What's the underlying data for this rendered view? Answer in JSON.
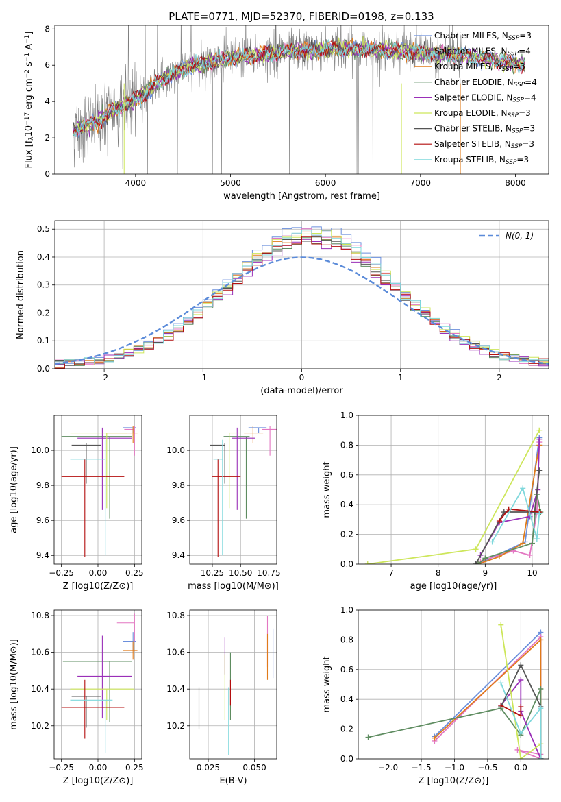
{
  "figure": {
    "title": "PLATE=0771, MJD=52370, FIBERID=0198, z=0.133"
  },
  "colors": {
    "Chabrier MILES": "#6b8fdc",
    "Salpeter MILES": "#e377c2",
    "Kroupa MILES": "#e07b1a",
    "Chabrier ELODIE": "#5e8c60",
    "Salpeter ELODIE": "#9a2fb8",
    "Kroupa ELODIE": "#cde65a",
    "Chabrier STELIB": "#555555",
    "Salpeter STELIB": "#b40f0f",
    "Kroupa STELIB": "#7fd8dc",
    "data": "#7f7f7f",
    "gaussian": "#5b8bd9",
    "grid": "#b0b0b0"
  },
  "chart_data": [
    {
      "id": "spectrum",
      "type": "line",
      "xlabel": "wavelength [Angstrom, rest frame]",
      "ylabel": "Flux [f_λ 10^-17 erg cm^-2 s^-1 A^-1]",
      "xticks": [
        4000,
        5000,
        6000,
        7000,
        8000
      ],
      "yticks": [
        0,
        2,
        4,
        6,
        8
      ],
      "xlim": [
        3150,
        8350
      ],
      "ylim": [
        0,
        8.2
      ],
      "grid": false,
      "legend": "right",
      "legend_entries": [
        {
          "label": "Chabrier MILES, N",
          "sub": "SSP",
          "suffix": "=3",
          "color": "#6b8fdc"
        },
        {
          "label": "Salpeter MILES, N",
          "sub": "SSP",
          "suffix": "=4",
          "color": "#e377c2"
        },
        {
          "label": "Kroupa MILES, N",
          "sub": "SSP",
          "suffix": "=3",
          "color": "#e07b1a"
        },
        {
          "label": "Chabrier ELODIE, N",
          "sub": "SSP",
          "suffix": "=4",
          "color": "#5e8c60"
        },
        {
          "label": "Salpeter ELODIE, N",
          "sub": "SSP",
          "suffix": "=4",
          "color": "#9a2fb8"
        },
        {
          "label": "Kroupa ELODIE, N",
          "sub": "SSP",
          "suffix": "=3",
          "color": "#cde65a"
        },
        {
          "label": "Chabrier STELIB, N",
          "sub": "SSP",
          "suffix": "=3",
          "color": "#555555"
        },
        {
          "label": "Salpeter STELIB, N",
          "sub": "SSP",
          "suffix": "=3",
          "color": "#b40f0f"
        },
        {
          "label": "Kroupa STELIB, N",
          "sub": "SSP",
          "suffix": "=3",
          "color": "#7fd8dc"
        }
      ],
      "data_range": [
        3340,
        7440
      ],
      "model_range": [
        3340,
        8100
      ],
      "continuum": [
        [
          3340,
          2.4
        ],
        [
          3600,
          2.9
        ],
        [
          3800,
          3.6
        ],
        [
          4000,
          4.1
        ],
        [
          4300,
          5.3
        ],
        [
          4600,
          6.0
        ],
        [
          5000,
          6.4
        ],
        [
          5500,
          6.7
        ],
        [
          6000,
          6.9
        ],
        [
          6500,
          6.9
        ],
        [
          7000,
          6.7
        ],
        [
          7500,
          6.5
        ],
        [
          8100,
          6.0
        ]
      ]
    },
    {
      "id": "residuals",
      "type": "step",
      "xlabel": "(data-model)/error",
      "ylabel": "Normed distribution",
      "xticks": [
        -2,
        -1,
        0,
        1,
        2
      ],
      "yticks": [
        0.0,
        0.1,
        0.2,
        0.3,
        0.4,
        0.5
      ],
      "xlim": [
        -2.5,
        2.5
      ],
      "ylim": [
        0,
        0.53
      ],
      "grid": true,
      "legend": "top-right",
      "legend_label": "N(0, 1)",
      "bins": 50,
      "mean": 0.1,
      "sigma": 0.85,
      "peak_values": [
        0.5,
        0.48,
        0.47,
        0.45,
        0.44,
        0.48,
        0.46,
        0.45,
        0.47
      ]
    },
    {
      "id": "age_vs_Z",
      "type": "errorbar",
      "xlabel": "Z [log10(Z/Z⊙)]",
      "ylabel": "age [log10(age/yr)]",
      "xticks": [
        -0.25,
        0.0,
        0.25
      ],
      "xtick_labels": [
        "−0.25",
        "0.00",
        "0.25"
      ],
      "yticks": [
        9.4,
        9.6,
        9.8,
        10.0
      ],
      "xlim": [
        -0.3,
        0.3
      ],
      "ylim": [
        9.35,
        10.2
      ],
      "grid": true,
      "points": [
        {
          "model": "Chabrier MILES",
          "x": 0.24,
          "xerr": [
            0.07,
            0.02
          ],
          "y": 10.13,
          "yerr": [
            0.03,
            0.0
          ]
        },
        {
          "model": "Salpeter MILES",
          "x": 0.25,
          "xerr": [
            0.07,
            0.0
          ],
          "y": 10.12,
          "yerr": [
            0.15,
            0.02
          ]
        },
        {
          "model": "Kroupa MILES",
          "x": 0.24,
          "xerr": [
            0.18,
            0.03
          ],
          "y": 10.1,
          "yerr": [
            0.06,
            0.04
          ]
        },
        {
          "model": "Chabrier ELODIE",
          "x": 0.08,
          "xerr": [
            0.33,
            0.15
          ],
          "y": 10.08,
          "yerr": [
            0.47,
            0.0
          ]
        },
        {
          "model": "Salpeter ELODIE",
          "x": 0.03,
          "xerr": [
            0.17,
            0.2
          ],
          "y": 10.07,
          "yerr": [
            0.41,
            0.06
          ]
        },
        {
          "model": "Kroupa ELODIE",
          "x": 0.06,
          "xerr": [
            0.25,
            0.14
          ],
          "y": 10.1,
          "yerr": [
            0.43,
            0.0
          ]
        },
        {
          "model": "Chabrier STELIB",
          "x": -0.08,
          "xerr": [
            0.1,
            0.1
          ],
          "y": 10.03,
          "yerr": [
            0.22,
            0.01
          ]
        },
        {
          "model": "Salpeter STELIB",
          "x": -0.09,
          "xerr": [
            0.16,
            0.27
          ],
          "y": 9.85,
          "yerr": [
            0.46,
            0.1
          ]
        },
        {
          "model": "Kroupa STELIB",
          "x": 0.05,
          "xerr": [
            0.24,
            0.0
          ],
          "y": 9.95,
          "yerr": [
            0.55,
            0.11
          ]
        }
      ]
    },
    {
      "id": "age_vs_mass",
      "type": "errorbar",
      "xlabel": "mass [log10(M/M⊙)]",
      "xticks": [
        10.25,
        10.5,
        10.75
      ],
      "xtick_labels": [
        "10.25",
        "10.50",
        "10.75"
      ],
      "yticks": [
        9.4,
        9.6,
        9.8,
        10.0
      ],
      "xlim": [
        10.05,
        10.82
      ],
      "ylim": [
        9.35,
        10.2
      ],
      "grid": true,
      "points": [
        {
          "model": "Chabrier MILES",
          "x": 10.66,
          "xerr": [
            0.09,
            0.07
          ],
          "y": 10.13,
          "yerr": [
            0.03,
            0.0
          ]
        },
        {
          "model": "Salpeter MILES",
          "x": 10.76,
          "xerr": [
            0.07,
            0.06
          ],
          "y": 10.12,
          "yerr": [
            0.15,
            0.02
          ]
        },
        {
          "model": "Kroupa MILES",
          "x": 10.61,
          "xerr": [
            0.08,
            0.09
          ],
          "y": 10.1,
          "yerr": [
            0.06,
            0.04
          ]
        },
        {
          "model": "Chabrier ELODIE",
          "x": 10.55,
          "xerr": [
            0.2,
            0.03
          ],
          "y": 10.08,
          "yerr": [
            0.47,
            0.0
          ]
        },
        {
          "model": "Salpeter ELODIE",
          "x": 10.47,
          "xerr": [
            0.05,
            0.16
          ],
          "y": 10.07,
          "yerr": [
            0.41,
            0.06
          ]
        },
        {
          "model": "Kroupa ELODIE",
          "x": 10.4,
          "xerr": [
            0.0,
            0.09
          ],
          "y": 10.1,
          "yerr": [
            0.43,
            0.0
          ]
        },
        {
          "model": "Chabrier STELIB",
          "x": 10.36,
          "xerr": [
            0.13,
            0.0
          ],
          "y": 10.03,
          "yerr": [
            0.22,
            0.01
          ]
        },
        {
          "model": "Salpeter STELIB",
          "x": 10.3,
          "xerr": [
            0.05,
            0.2
          ],
          "y": 9.85,
          "yerr": [
            0.46,
            0.1
          ]
        },
        {
          "model": "Kroupa STELIB",
          "x": 10.34,
          "xerr": [
            0.08,
            0.0
          ],
          "y": 9.95,
          "yerr": [
            0.55,
            0.11
          ]
        }
      ]
    },
    {
      "id": "weight_vs_age",
      "type": "line",
      "xlabel": "age [log10(age/yr)]",
      "ylabel": "mass weight",
      "xticks": [
        7,
        8,
        9,
        10
      ],
      "yticks": [
        0.0,
        0.2,
        0.4,
        0.6,
        0.8,
        1.0
      ],
      "xlim": [
        6.3,
        10.35
      ],
      "ylim": [
        0,
        1.0
      ],
      "grid": true,
      "series": [
        {
          "model": "Chabrier MILES",
          "x": [
            8.85,
            9.85,
            10.15
          ],
          "y": [
            0.0,
            0.15,
            0.85
          ]
        },
        {
          "model": "Salpeter MILES",
          "x": [
            8.9,
            9.6,
            9.95,
            10.1,
            10.15
          ],
          "y": [
            0.02,
            0.09,
            0.06,
            0.35,
            0.82
          ]
        },
        {
          "model": "Kroupa MILES",
          "x": [
            8.85,
            9.3,
            9.8,
            10.15
          ],
          "y": [
            0.0,
            0.05,
            0.14,
            0.8
          ]
        },
        {
          "model": "Chabrier ELODIE",
          "x": [
            8.85,
            9.0,
            10.0,
            10.1,
            10.18
          ],
          "y": [
            0.0,
            0.04,
            0.14,
            0.47,
            0.35
          ]
        },
        {
          "model": "Salpeter ELODIE",
          "x": [
            8.9,
            9.3,
            9.95,
            10.12,
            10.15
          ],
          "y": [
            0.06,
            0.28,
            0.32,
            0.5,
            0.84
          ]
        },
        {
          "model": "Kroupa ELODIE",
          "x": [
            6.5,
            8.8,
            10.15
          ],
          "y": [
            0.0,
            0.1,
            0.9
          ]
        },
        {
          "model": "Chabrier STELIB",
          "x": [
            8.8,
            9.4,
            10.05,
            10.15
          ],
          "y": [
            0.0,
            0.35,
            0.35,
            0.63
          ]
        },
        {
          "model": "Salpeter STELIB",
          "x": [
            9.3,
            9.5,
            10.15
          ],
          "y": [
            0.29,
            0.37,
            0.35
          ]
        },
        {
          "model": "Kroupa STELIB",
          "x": [
            9.15,
            9.8,
            10.1,
            10.15
          ],
          "y": [
            0.15,
            0.51,
            0.17,
            0.34
          ]
        }
      ]
    },
    {
      "id": "mass_vs_Z",
      "type": "errorbar",
      "xlabel": "Z [log10(Z/Z⊙)]",
      "ylabel": "mass [log10(M/M⊙)]",
      "xticks": [
        -0.25,
        0.0,
        0.25
      ],
      "xtick_labels": [
        "−0.25",
        "0.00",
        "0.25"
      ],
      "yticks": [
        10.2,
        10.4,
        10.6,
        10.8
      ],
      "xlim": [
        -0.3,
        0.3
      ],
      "ylim": [
        10.02,
        10.83
      ],
      "grid": true,
      "points": [
        {
          "model": "Chabrier MILES",
          "x": 0.24,
          "xerr": [
            0.07,
            0.02
          ],
          "y": 10.66,
          "yerr": [
            0.05,
            0.05
          ]
        },
        {
          "model": "Salpeter MILES",
          "x": 0.25,
          "xerr": [
            0.12,
            0.0
          ],
          "y": 10.76,
          "yerr": [
            0.1,
            0.05
          ]
        },
        {
          "model": "Kroupa MILES",
          "x": 0.24,
          "xerr": [
            0.07,
            0.03
          ],
          "y": 10.61,
          "yerr": [
            0.05,
            0.05
          ]
        },
        {
          "model": "Chabrier ELODIE",
          "x": 0.08,
          "xerr": [
            0.32,
            0.15
          ],
          "y": 10.55,
          "yerr": [
            0.33,
            0.0
          ]
        },
        {
          "model": "Salpeter ELODIE",
          "x": 0.03,
          "xerr": [
            0.17,
            0.2
          ],
          "y": 10.47,
          "yerr": [
            0.23,
            0.22
          ]
        },
        {
          "model": "Kroupa ELODIE",
          "x": 0.06,
          "xerr": [
            0.25,
            0.19
          ],
          "y": 10.4,
          "yerr": [
            0.17,
            0.0
          ]
        },
        {
          "model": "Chabrier STELIB",
          "x": -0.08,
          "xerr": [
            0.1,
            0.1
          ],
          "y": 10.36,
          "yerr": [
            0.17,
            0.0
          ]
        },
        {
          "model": "Salpeter STELIB",
          "x": -0.09,
          "xerr": [
            0.16,
            0.27
          ],
          "y": 10.3,
          "yerr": [
            0.17,
            0.15
          ]
        },
        {
          "model": "Kroupa STELIB",
          "x": 0.05,
          "xerr": [
            0.24,
            0.05
          ],
          "y": 10.34,
          "yerr": [
            0.29,
            0.0
          ]
        }
      ]
    },
    {
      "id": "mass_vs_EBV",
      "type": "errorbar",
      "xlabel": "E(B-V)",
      "xticks": [
        0.025,
        0.05
      ],
      "xtick_labels": [
        "0.025",
        "0.050"
      ],
      "yticks": [
        10.2,
        10.4,
        10.6,
        10.8
      ],
      "xlim": [
        0.015,
        0.062
      ],
      "ylim": [
        10.02,
        10.83
      ],
      "grid": true,
      "points": [
        {
          "model": "Chabrier MILES",
          "x": 0.06,
          "y": 10.6,
          "yerr": [
            0.14,
            0.13
          ]
        },
        {
          "model": "Salpeter MILES",
          "x": 0.057,
          "y": 10.66,
          "yerr": [
            0.14,
            0.14
          ]
        },
        {
          "model": "Kroupa MILES",
          "x": 0.057,
          "y": 10.58,
          "yerr": [
            0.13,
            0.12
          ]
        },
        {
          "model": "Chabrier ELODIE",
          "x": 0.037,
          "y": 10.47,
          "yerr": [
            0.24,
            0.13
          ]
        },
        {
          "model": "Salpeter ELODIE",
          "x": 0.034,
          "y": 10.58,
          "yerr": [
            0.1,
            0.1
          ]
        },
        {
          "model": "Kroupa ELODIE",
          "x": 0.034,
          "y": 10.39,
          "yerr": [
            0.16,
            0.2
          ]
        },
        {
          "model": "Chabrier STELIB",
          "x": 0.02,
          "y": 10.29,
          "yerr": [
            0.11,
            0.12
          ]
        },
        {
          "model": "Salpeter STELIB",
          "x": 0.037,
          "y": 10.38,
          "yerr": [
            0.07,
            0.07
          ]
        },
        {
          "model": "Kroupa STELIB",
          "x": 0.036,
          "y": 10.27,
          "yerr": [
            0.23,
            0.14
          ]
        }
      ]
    },
    {
      "id": "weight_vs_Z",
      "type": "line",
      "xlabel": "Z [log10(Z/Z⊙)]",
      "ylabel": "mass weight",
      "xticks": [
        -2.0,
        -1.5,
        -1.0,
        -0.5,
        0.0
      ],
      "xtick_labels": [
        "−2.0",
        "−1.5",
        "−1.0",
        "−0.5",
        "0.0"
      ],
      "yticks": [
        0.0,
        0.2,
        0.4,
        0.6,
        0.8,
        1.0
      ],
      "xlim": [
        -2.45,
        0.42
      ],
      "ylim": [
        0,
        1.0
      ],
      "grid": true,
      "series": [
        {
          "model": "Chabrier MILES",
          "x": [
            -1.3,
            0.3,
            0.3
          ],
          "y": [
            0.15,
            0.85,
            0.0
          ]
        },
        {
          "model": "Salpeter MILES",
          "x": [
            -1.3,
            0.3,
            0.3,
            -0.05,
            0.3
          ],
          "y": [
            0.12,
            0.82,
            0.03,
            0.06,
            0.0
          ]
        },
        {
          "model": "Kroupa MILES",
          "x": [
            -1.3,
            0.3,
            0.3
          ],
          "y": [
            0.14,
            0.8,
            0.0
          ]
        },
        {
          "model": "Chabrier ELODIE",
          "x": [
            -2.3,
            -0.3,
            0.0,
            0.3,
            0.3
          ],
          "y": [
            0.145,
            0.34,
            0.16,
            0.47,
            0.0
          ]
        },
        {
          "model": "Salpeter ELODIE",
          "x": [
            -0.3,
            0.0,
            0.0,
            0.3
          ],
          "y": [
            0.36,
            0.53,
            0.32,
            0.0
          ]
        },
        {
          "model": "Kroupa ELODIE",
          "x": [
            -0.3,
            0.0,
            0.3
          ],
          "y": [
            0.9,
            0.0,
            0.1
          ]
        },
        {
          "model": "Chabrier STELIB",
          "x": [
            -0.3,
            0.0,
            0.3,
            0.3
          ],
          "y": [
            0.35,
            0.63,
            0.35,
            0.0
          ]
        },
        {
          "model": "Salpeter STELIB",
          "x": [
            -0.3,
            0.0,
            0.0
          ],
          "y": [
            0.36,
            0.29,
            0.35
          ]
        },
        {
          "model": "Kroupa STELIB",
          "x": [
            -0.3,
            0.0,
            0.3,
            0.3
          ],
          "y": [
            0.51,
            0.17,
            0.34,
            0.0
          ]
        }
      ]
    }
  ]
}
